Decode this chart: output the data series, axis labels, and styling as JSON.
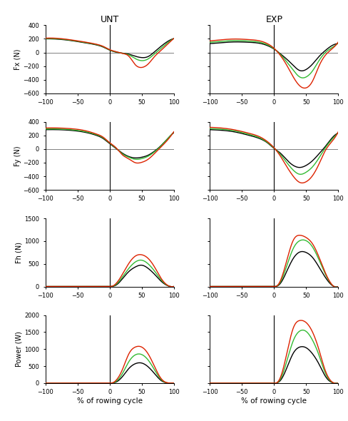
{
  "col_titles": [
    "UNT",
    "EXP"
  ],
  "row_labels": [
    "Fx (N)",
    "Fy (N)",
    "Fh (N)",
    "Power (W)"
  ],
  "xlabel": "% of rowing cycle",
  "xlim": [
    -100,
    100
  ],
  "colors": [
    "#000000",
    "#33bb33",
    "#dd2200"
  ],
  "panels": {
    "Fx_UNT": {
      "ylim": [
        -600,
        400
      ],
      "yticks": [
        -600,
        -400,
        -200,
        0,
        200,
        400
      ],
      "hline": true,
      "curves": [
        {
          "x": [
            -100,
            -80,
            -60,
            -40,
            -20,
            -10,
            0,
            10,
            20,
            30,
            40,
            50,
            60,
            70,
            80,
            90,
            100
          ],
          "y": [
            200,
            195,
            175,
            145,
            110,
            80,
            35,
            5,
            -10,
            -25,
            -55,
            -75,
            -60,
            10,
            90,
            160,
            205
          ]
        },
        {
          "x": [
            -100,
            -80,
            -60,
            -40,
            -20,
            -10,
            0,
            10,
            20,
            30,
            40,
            50,
            60,
            70,
            80,
            90,
            100
          ],
          "y": [
            205,
            200,
            180,
            150,
            115,
            85,
            38,
            8,
            -12,
            -35,
            -90,
            -120,
            -95,
            -20,
            60,
            140,
            205
          ]
        },
        {
          "x": [
            -100,
            -80,
            -60,
            -40,
            -20,
            -10,
            0,
            10,
            20,
            30,
            40,
            50,
            60,
            70,
            80,
            90,
            100
          ],
          "y": [
            210,
            207,
            185,
            156,
            120,
            90,
            42,
            12,
            -14,
            -55,
            -180,
            -220,
            -170,
            -60,
            30,
            120,
            205
          ]
        }
      ]
    },
    "Fx_EXP": {
      "ylim": [
        -600,
        400
      ],
      "yticks": [
        -600,
        -400,
        -200,
        0,
        200,
        400
      ],
      "hline": true,
      "curves": [
        {
          "x": [
            -100,
            -80,
            -60,
            -40,
            -20,
            -10,
            0,
            10,
            20,
            30,
            40,
            50,
            60,
            70,
            80,
            90,
            100
          ],
          "y": [
            130,
            145,
            155,
            150,
            130,
            100,
            50,
            -20,
            -100,
            -190,
            -265,
            -250,
            -170,
            -60,
            30,
            100,
            130
          ]
        },
        {
          "x": [
            -100,
            -80,
            -60,
            -40,
            -20,
            -10,
            0,
            10,
            20,
            30,
            40,
            50,
            60,
            70,
            80,
            90,
            100
          ],
          "y": [
            150,
            165,
            175,
            168,
            145,
            112,
            55,
            -30,
            -140,
            -260,
            -360,
            -360,
            -270,
            -120,
            0,
            70,
            140
          ]
        },
        {
          "x": [
            -100,
            -80,
            -60,
            -40,
            -20,
            -10,
            0,
            10,
            20,
            30,
            40,
            50,
            60,
            70,
            80,
            90,
            100
          ],
          "y": [
            170,
            188,
            198,
            190,
            165,
            128,
            62,
            -45,
            -190,
            -360,
            -490,
            -520,
            -420,
            -200,
            -40,
            50,
            155
          ]
        }
      ]
    },
    "Fy_UNT": {
      "ylim": [
        -600,
        400
      ],
      "yticks": [
        -600,
        -400,
        -200,
        0,
        200,
        400
      ],
      "hline": true,
      "curves": [
        {
          "x": [
            -100,
            -80,
            -60,
            -40,
            -20,
            -10,
            0,
            10,
            20,
            30,
            40,
            50,
            60,
            70,
            80,
            90,
            100
          ],
          "y": [
            285,
            285,
            275,
            250,
            200,
            155,
            80,
            10,
            -60,
            -110,
            -130,
            -120,
            -90,
            -30,
            50,
            150,
            240
          ]
        },
        {
          "x": [
            -100,
            -80,
            -60,
            -40,
            -20,
            -10,
            0,
            10,
            20,
            30,
            40,
            50,
            60,
            70,
            80,
            90,
            100
          ],
          "y": [
            295,
            295,
            285,
            260,
            210,
            165,
            88,
            15,
            -70,
            -120,
            -150,
            -140,
            -105,
            -40,
            45,
            148,
            248
          ]
        },
        {
          "x": [
            -100,
            -80,
            -60,
            -40,
            -20,
            -10,
            0,
            10,
            20,
            30,
            40,
            50,
            60,
            70,
            80,
            90,
            100
          ],
          "y": [
            310,
            310,
            300,
            275,
            220,
            175,
            95,
            20,
            -85,
            -145,
            -200,
            -195,
            -150,
            -65,
            30,
            130,
            255
          ]
        }
      ]
    },
    "Fy_EXP": {
      "ylim": [
        -600,
        400
      ],
      "yticks": [
        -600,
        -400,
        -200,
        0,
        200,
        400
      ],
      "hline": true,
      "curves": [
        {
          "x": [
            -100,
            -80,
            -60,
            -40,
            -20,
            -10,
            0,
            10,
            20,
            30,
            40,
            50,
            60,
            70,
            80,
            90,
            100
          ],
          "y": [
            285,
            275,
            250,
            205,
            145,
            90,
            10,
            -60,
            -160,
            -240,
            -270,
            -240,
            -170,
            -70,
            40,
            160,
            235
          ]
        },
        {
          "x": [
            -100,
            -80,
            -60,
            -40,
            -20,
            -10,
            0,
            10,
            20,
            30,
            40,
            50,
            60,
            70,
            80,
            90,
            100
          ],
          "y": [
            300,
            290,
            265,
            218,
            155,
            96,
            15,
            -80,
            -200,
            -310,
            -370,
            -340,
            -260,
            -130,
            20,
            140,
            245
          ]
        },
        {
          "x": [
            -100,
            -80,
            -60,
            -40,
            -20,
            -10,
            0,
            10,
            20,
            30,
            40,
            50,
            60,
            70,
            80,
            90,
            100
          ],
          "y": [
            320,
            308,
            280,
            235,
            170,
            108,
            20,
            -105,
            -260,
            -400,
            -490,
            -480,
            -390,
            -220,
            -20,
            110,
            255
          ]
        }
      ]
    },
    "Fh_UNT": {
      "ylim": [
        0,
        1500
      ],
      "yticks": [
        0,
        500,
        1000,
        1500
      ],
      "hline": false,
      "curves": [
        {
          "x": [
            -100,
            -80,
            -60,
            -40,
            -20,
            0,
            5,
            10,
            20,
            30,
            40,
            50,
            60,
            70,
            80,
            90,
            100
          ],
          "y": [
            0,
            0,
            0,
            0,
            0,
            0,
            5,
            30,
            170,
            330,
            430,
            470,
            400,
            270,
            120,
            20,
            0
          ]
        },
        {
          "x": [
            -100,
            -80,
            -60,
            -40,
            -20,
            0,
            5,
            10,
            20,
            30,
            40,
            50,
            60,
            70,
            80,
            90,
            100
          ],
          "y": [
            0,
            0,
            0,
            0,
            0,
            0,
            8,
            45,
            210,
            400,
            540,
            580,
            500,
            340,
            150,
            25,
            0
          ]
        },
        {
          "x": [
            -100,
            -80,
            -60,
            -40,
            -20,
            0,
            5,
            10,
            20,
            30,
            40,
            50,
            60,
            70,
            80,
            90,
            100
          ],
          "y": [
            0,
            0,
            0,
            0,
            0,
            0,
            12,
            65,
            270,
            510,
            670,
            700,
            620,
            430,
            185,
            30,
            0
          ]
        }
      ]
    },
    "Fh_EXP": {
      "ylim": [
        0,
        1500
      ],
      "yticks": [
        0,
        500,
        1000,
        1500
      ],
      "hline": false,
      "curves": [
        {
          "x": [
            -100,
            -80,
            -60,
            -40,
            -20,
            0,
            5,
            10,
            20,
            30,
            40,
            50,
            60,
            70,
            80,
            90,
            100
          ],
          "y": [
            0,
            0,
            0,
            0,
            0,
            0,
            10,
            70,
            340,
            620,
            760,
            750,
            640,
            430,
            200,
            30,
            0
          ]
        },
        {
          "x": [
            -100,
            -80,
            -60,
            -40,
            -20,
            0,
            5,
            10,
            20,
            30,
            40,
            50,
            60,
            70,
            80,
            90,
            100
          ],
          "y": [
            0,
            0,
            0,
            0,
            0,
            0,
            15,
            100,
            460,
            840,
            1010,
            1010,
            870,
            590,
            270,
            40,
            0
          ]
        },
        {
          "x": [
            -100,
            -80,
            -60,
            -40,
            -20,
            0,
            5,
            10,
            20,
            30,
            40,
            50,
            60,
            70,
            80,
            90,
            100
          ],
          "y": [
            0,
            0,
            0,
            0,
            0,
            0,
            20,
            130,
            580,
            1020,
            1130,
            1080,
            940,
            650,
            300,
            45,
            0
          ]
        }
      ]
    },
    "Power_UNT": {
      "ylim": [
        0,
        2000
      ],
      "yticks": [
        0,
        500,
        1000,
        1500,
        2000
      ],
      "hline": false,
      "curves": [
        {
          "x": [
            -100,
            -80,
            -60,
            -40,
            -20,
            0,
            5,
            10,
            20,
            30,
            40,
            50,
            60,
            70,
            80,
            90,
            100
          ],
          "y": [
            0,
            0,
            0,
            0,
            0,
            0,
            5,
            30,
            190,
            430,
            570,
            590,
            480,
            280,
            80,
            5,
            0
          ]
        },
        {
          "x": [
            -100,
            -80,
            -60,
            -40,
            -20,
            0,
            5,
            10,
            20,
            30,
            40,
            50,
            60,
            70,
            80,
            90,
            100
          ],
          "y": [
            0,
            0,
            0,
            0,
            0,
            0,
            8,
            50,
            280,
            630,
            830,
            840,
            680,
            390,
            110,
            8,
            0
          ]
        },
        {
          "x": [
            -100,
            -80,
            -60,
            -40,
            -20,
            0,
            5,
            10,
            20,
            30,
            40,
            50,
            60,
            70,
            80,
            90,
            100
          ],
          "y": [
            0,
            0,
            0,
            0,
            0,
            0,
            12,
            80,
            400,
            860,
            1060,
            1060,
            860,
            490,
            140,
            10,
            0
          ]
        }
      ]
    },
    "Power_EXP": {
      "ylim": [
        0,
        2000
      ],
      "yticks": [
        0,
        500,
        1000,
        1500,
        2000
      ],
      "hline": false,
      "curves": [
        {
          "x": [
            -100,
            -80,
            -60,
            -40,
            -20,
            0,
            5,
            10,
            20,
            30,
            40,
            50,
            60,
            70,
            80,
            90,
            100
          ],
          "y": [
            0,
            0,
            0,
            0,
            0,
            0,
            10,
            80,
            450,
            880,
            1060,
            1040,
            860,
            560,
            200,
            20,
            0
          ]
        },
        {
          "x": [
            -100,
            -80,
            -60,
            -40,
            -20,
            0,
            5,
            10,
            20,
            30,
            40,
            50,
            60,
            70,
            80,
            90,
            100
          ],
          "y": [
            0,
            0,
            0,
            0,
            0,
            0,
            15,
            120,
            650,
            1250,
            1530,
            1520,
            1260,
            820,
            290,
            30,
            0
          ]
        },
        {
          "x": [
            -100,
            -80,
            -60,
            -40,
            -20,
            0,
            5,
            10,
            20,
            30,
            40,
            50,
            60,
            70,
            80,
            90,
            100
          ],
          "y": [
            0,
            0,
            0,
            0,
            0,
            0,
            20,
            170,
            880,
            1620,
            1840,
            1780,
            1500,
            980,
            360,
            40,
            0
          ]
        }
      ]
    }
  }
}
